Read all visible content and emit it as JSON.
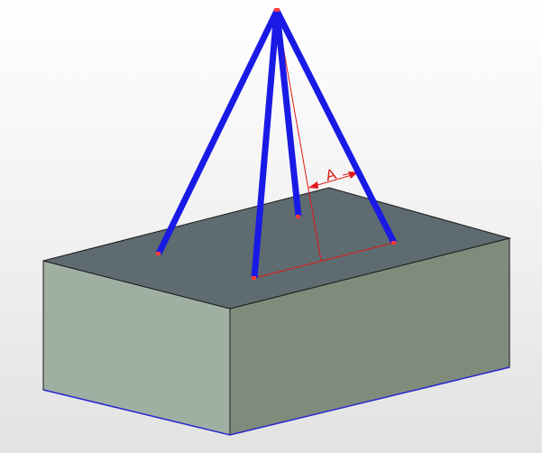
{
  "annotation": {
    "angle_label": "A"
  },
  "colors": {
    "background": "#f2f2f2",
    "box_top": "#5e6b70",
    "box_front": "#9fb0a3",
    "box_side": "#7f8c7c",
    "box_edge": "#1a1a1a",
    "box_bottom_edge": "#2a2ad0",
    "sling": "#1a1ae6",
    "dimension": "#e01818",
    "endpoint": "#ff3b3b"
  },
  "scene": {
    "object": "box",
    "sling_count": 4,
    "sling_icon": "lifting-sling"
  }
}
